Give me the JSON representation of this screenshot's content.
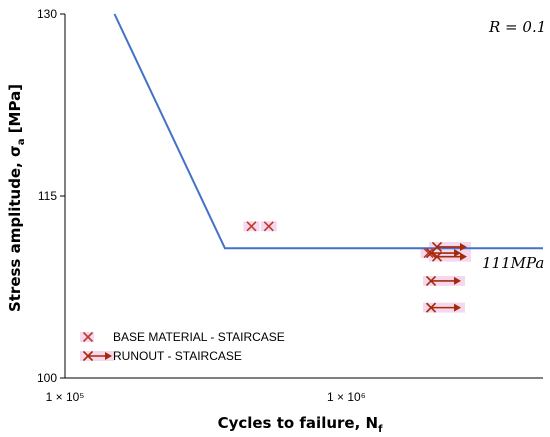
{
  "chart_data": {
    "type": "scatter",
    "title": "",
    "xlabel_main": "Cycles to failure, N",
    "xlabel_sub": "f",
    "ylabel_main": "Stress amplitude, σ",
    "ylabel_sub": "a",
    "ylabel_unit": " [MPa]",
    "x_scale": "log",
    "xlim": [
      100000,
      5000000
    ],
    "ylim": [
      100,
      130
    ],
    "y_ticks": [
      {
        "value": 100,
        "label": "100"
      },
      {
        "value": 115,
        "label": "115"
      },
      {
        "value": 130,
        "label": "130"
      }
    ],
    "x_ticks": [
      {
        "value": 100000,
        "label": "1 × 10⁵"
      },
      {
        "value": 1000000,
        "label": "1 × 10⁶"
      }
    ],
    "grid": false,
    "sn_curve": {
      "color": "#4472C4",
      "x": [
        150000,
        370000,
        5000000
      ],
      "y": [
        130,
        110.7,
        110.7
      ]
    },
    "series": [
      {
        "name": "BASE MATERIAL - STAIRCASE",
        "marker": "x",
        "color": "#C0392B",
        "points": [
          {
            "x": 460000,
            "y": 112.5
          },
          {
            "x": 530000,
            "y": 112.5
          },
          {
            "x": 1960000,
            "y": 110.3
          }
        ]
      },
      {
        "name": "RUNOUT - STAIRCASE",
        "marker": "x-arrow",
        "color": "#A52A0A",
        "points": [
          {
            "x": 2000000,
            "y": 110.3
          },
          {
            "x": 2100000,
            "y": 110.8
          },
          {
            "x": 2100000,
            "y": 110.0
          },
          {
            "x": 2000000,
            "y": 108.0
          },
          {
            "x": 2000000,
            "y": 105.8
          }
        ]
      }
    ],
    "annotations": [
      {
        "text": "R = 0.1",
        "position": "top-right"
      },
      {
        "text": "111MPa",
        "position": "right of curve"
      }
    ],
    "legend_position": "bottom-left"
  }
}
